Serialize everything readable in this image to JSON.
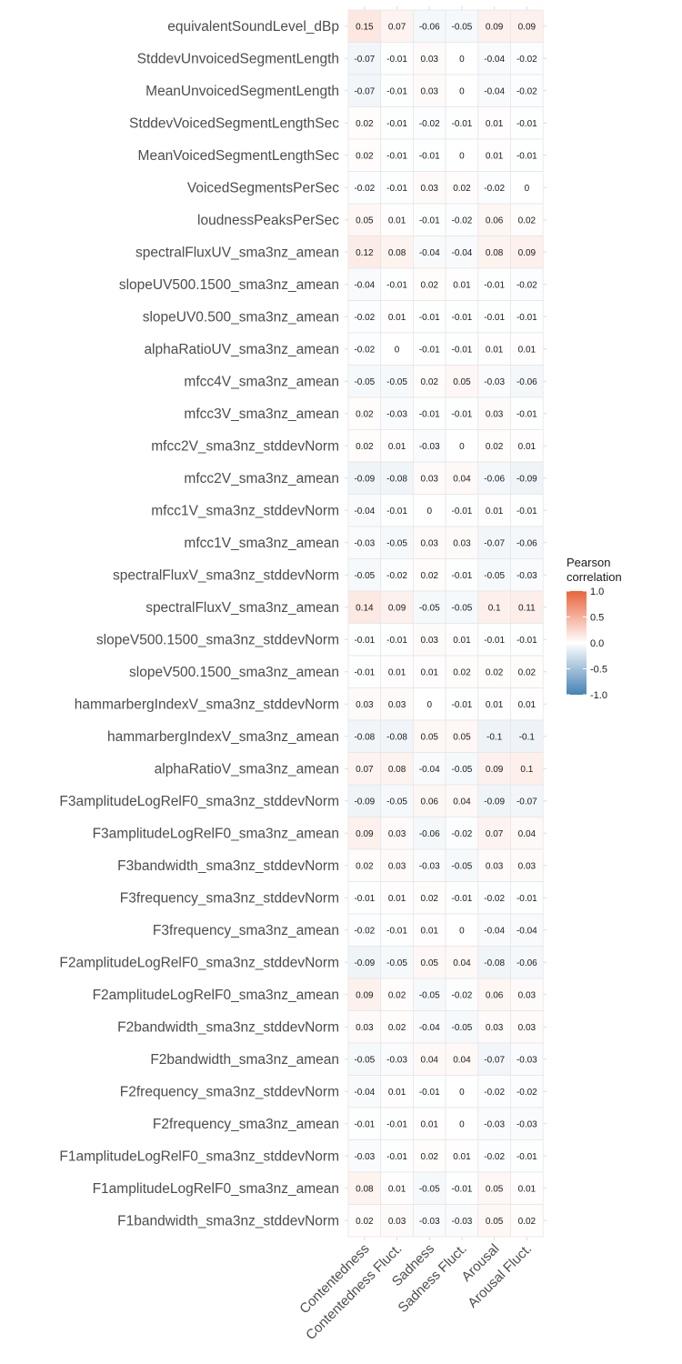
{
  "chart_data": {
    "type": "heatmap",
    "rows": [
      "equivalentSoundLevel_dBp",
      "StddevUnvoicedSegmentLength",
      "MeanUnvoicedSegmentLength",
      "StddevVoicedSegmentLengthSec",
      "MeanVoicedSegmentLengthSec",
      "VoicedSegmentsPerSec",
      "loudnessPeaksPerSec",
      "spectralFluxUV_sma3nz_amean",
      "slopeUV500.1500_sma3nz_amean",
      "slopeUV0.500_sma3nz_amean",
      "alphaRatioUV_sma3nz_amean",
      "mfcc4V_sma3nz_amean",
      "mfcc3V_sma3nz_amean",
      "mfcc2V_sma3nz_stddevNorm",
      "mfcc2V_sma3nz_amean",
      "mfcc1V_sma3nz_stddevNorm",
      "mfcc1V_sma3nz_amean",
      "spectralFluxV_sma3nz_stddevNorm",
      "spectralFluxV_sma3nz_amean",
      "slopeV500.1500_sma3nz_stddevNorm",
      "slopeV500.1500_sma3nz_amean",
      "hammarbergIndexV_sma3nz_stddevNorm",
      "hammarbergIndexV_sma3nz_amean",
      "alphaRatioV_sma3nz_amean",
      "F3amplitudeLogRelF0_sma3nz_stddevNorm",
      "F3amplitudeLogRelF0_sma3nz_amean",
      "F3bandwidth_sma3nz_stddevNorm",
      "F3frequency_sma3nz_stddevNorm",
      "F3frequency_sma3nz_amean",
      "F2amplitudeLogRelF0_sma3nz_stddevNorm",
      "F2amplitudeLogRelF0_sma3nz_amean",
      "F2bandwidth_sma3nz_stddevNorm",
      "F2bandwidth_sma3nz_amean",
      "F2frequency_sma3nz_stddevNorm",
      "F2frequency_sma3nz_amean",
      "F1amplitudeLogRelF0_sma3nz_stddevNorm",
      "F1amplitudeLogRelF0_sma3nz_amean",
      "F1bandwidth_sma3nz_stddevNorm"
    ],
    "columns": [
      "Contentedness",
      "Contentedness Fluct.",
      "Sadness",
      "Sadness Fluct.",
      "Arousal",
      "Arousal Fluct."
    ],
    "values": [
      [
        0.15,
        0.07,
        -0.06,
        -0.05,
        0.09,
        0.09
      ],
      [
        -0.07,
        -0.01,
        0.03,
        0,
        -0.04,
        -0.02
      ],
      [
        -0.07,
        -0.01,
        0.03,
        0,
        -0.04,
        -0.02
      ],
      [
        0.02,
        -0.01,
        -0.02,
        -0.01,
        0.01,
        -0.01
      ],
      [
        0.02,
        -0.01,
        -0.01,
        0,
        0.01,
        -0.01
      ],
      [
        -0.02,
        -0.01,
        0.03,
        0.02,
        -0.02,
        0
      ],
      [
        0.05,
        0.01,
        -0.01,
        -0.02,
        0.06,
        0.02
      ],
      [
        0.12,
        0.08,
        -0.04,
        -0.04,
        0.08,
        0.09
      ],
      [
        -0.04,
        -0.01,
        0.02,
        0.01,
        -0.01,
        -0.02
      ],
      [
        -0.02,
        0.01,
        -0.01,
        -0.01,
        -0.01,
        -0.01
      ],
      [
        -0.02,
        0,
        -0.01,
        -0.01,
        0.01,
        0.01
      ],
      [
        -0.05,
        -0.05,
        0.02,
        0.05,
        -0.03,
        -0.06
      ],
      [
        0.02,
        -0.03,
        -0.01,
        -0.01,
        0.03,
        -0.01
      ],
      [
        0.02,
        0.01,
        -0.03,
        0,
        0.02,
        0.01
      ],
      [
        -0.09,
        -0.08,
        0.03,
        0.04,
        -0.06,
        -0.09
      ],
      [
        -0.04,
        -0.01,
        0,
        -0.01,
        0.01,
        -0.01
      ],
      [
        -0.03,
        -0.05,
        0.03,
        0.03,
        -0.07,
        -0.06
      ],
      [
        -0.05,
        -0.02,
        0.02,
        -0.01,
        -0.05,
        -0.03
      ],
      [
        0.14,
        0.09,
        -0.05,
        -0.05,
        0.1,
        0.11
      ],
      [
        -0.01,
        -0.01,
        0.03,
        0.01,
        -0.01,
        -0.01
      ],
      [
        -0.01,
        0.01,
        0.01,
        0.02,
        0.02,
        0.02
      ],
      [
        0.03,
        0.03,
        0,
        -0.01,
        0.01,
        0.01
      ],
      [
        -0.08,
        -0.08,
        0.05,
        0.05,
        -0.1,
        -0.1
      ],
      [
        0.07,
        0.08,
        -0.04,
        -0.05,
        0.09,
        0.1
      ],
      [
        -0.09,
        -0.05,
        0.06,
        0.04,
        -0.09,
        -0.07
      ],
      [
        0.09,
        0.03,
        -0.06,
        -0.02,
        0.07,
        0.04
      ],
      [
        0.02,
        0.03,
        -0.03,
        -0.05,
        0.03,
        0.03
      ],
      [
        -0.01,
        0.01,
        0.02,
        -0.01,
        -0.02,
        -0.01
      ],
      [
        -0.02,
        -0.01,
        0.01,
        0,
        -0.04,
        -0.04
      ],
      [
        -0.09,
        -0.05,
        0.05,
        0.04,
        -0.08,
        -0.06
      ],
      [
        0.09,
        0.02,
        -0.05,
        -0.02,
        0.06,
        0.03
      ],
      [
        0.03,
        0.02,
        -0.04,
        -0.05,
        0.03,
        0.03
      ],
      [
        -0.05,
        -0.03,
        0.04,
        0.04,
        -0.07,
        -0.03
      ],
      [
        -0.04,
        0.01,
        -0.01,
        0,
        -0.02,
        -0.02
      ],
      [
        -0.01,
        -0.01,
        0.01,
        0,
        -0.03,
        -0.03
      ],
      [
        -0.03,
        -0.01,
        0.02,
        0.01,
        -0.02,
        -0.01
      ],
      [
        0.08,
        0.01,
        -0.05,
        -0.01,
        0.05,
        0.01
      ],
      [
        0.02,
        0.03,
        -0.03,
        -0.03,
        0.05,
        0.02
      ]
    ],
    "legend": {
      "title_line1": "Pearson",
      "title_line2": "correlation",
      "ticks": [
        1.0,
        0.5,
        0.0,
        -0.5,
        -1.0
      ],
      "tick_labels": [
        "1.0",
        "0.5",
        "0.0",
        "-0.5",
        "-1.0"
      ],
      "placement": "right"
    },
    "color_scale": {
      "low": "#4682b4",
      "mid": "#ffffff",
      "high": "#e8643a",
      "limits": [
        -1,
        1
      ]
    },
    "grid": true
  }
}
